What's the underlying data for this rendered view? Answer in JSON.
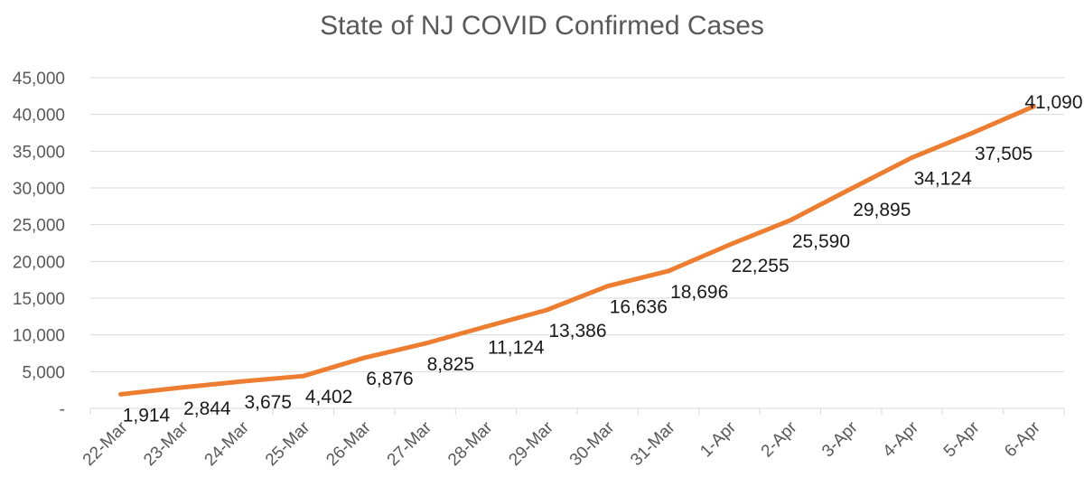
{
  "chart_data": {
    "type": "line",
    "title": "State of NJ COVID Confirmed Cases",
    "xlabel": "",
    "ylabel": "",
    "categories": [
      "22-Mar",
      "23-Mar",
      "24-Mar",
      "25-Mar",
      "26-Mar",
      "27-Mar",
      "28-Mar",
      "29-Mar",
      "30-Mar",
      "31-Mar",
      "1-Apr",
      "2-Apr",
      "3-Apr",
      "4-Apr",
      "5-Apr",
      "6-Apr"
    ],
    "series": [
      {
        "color": "#ED7D31",
        "values": [
          1914,
          2844,
          3675,
          4402,
          6876,
          8825,
          11124,
          13386,
          16636,
          18696,
          22255,
          25590,
          29895,
          34124,
          37505,
          41090
        ],
        "labels": [
          "1,914",
          "2,844",
          "3,675",
          "4,402",
          "6,876",
          "8,825",
          "11,124",
          "13,386",
          "16,636",
          "18,696",
          "22,255",
          "25,590",
          "29,895",
          "34,124",
          "37,505",
          "41,090"
        ]
      }
    ],
    "ylim": [
      0,
      45000
    ],
    "yticks": [
      0,
      5000,
      10000,
      15000,
      20000,
      25000,
      30000,
      35000,
      40000,
      45000
    ],
    "ytick_labels": [
      "-",
      "5,000",
      "10,000",
      "15,000",
      "20,000",
      "25,000",
      "30,000",
      "35,000",
      "40,000",
      "45,000"
    ],
    "grid": true,
    "legend": "none"
  }
}
